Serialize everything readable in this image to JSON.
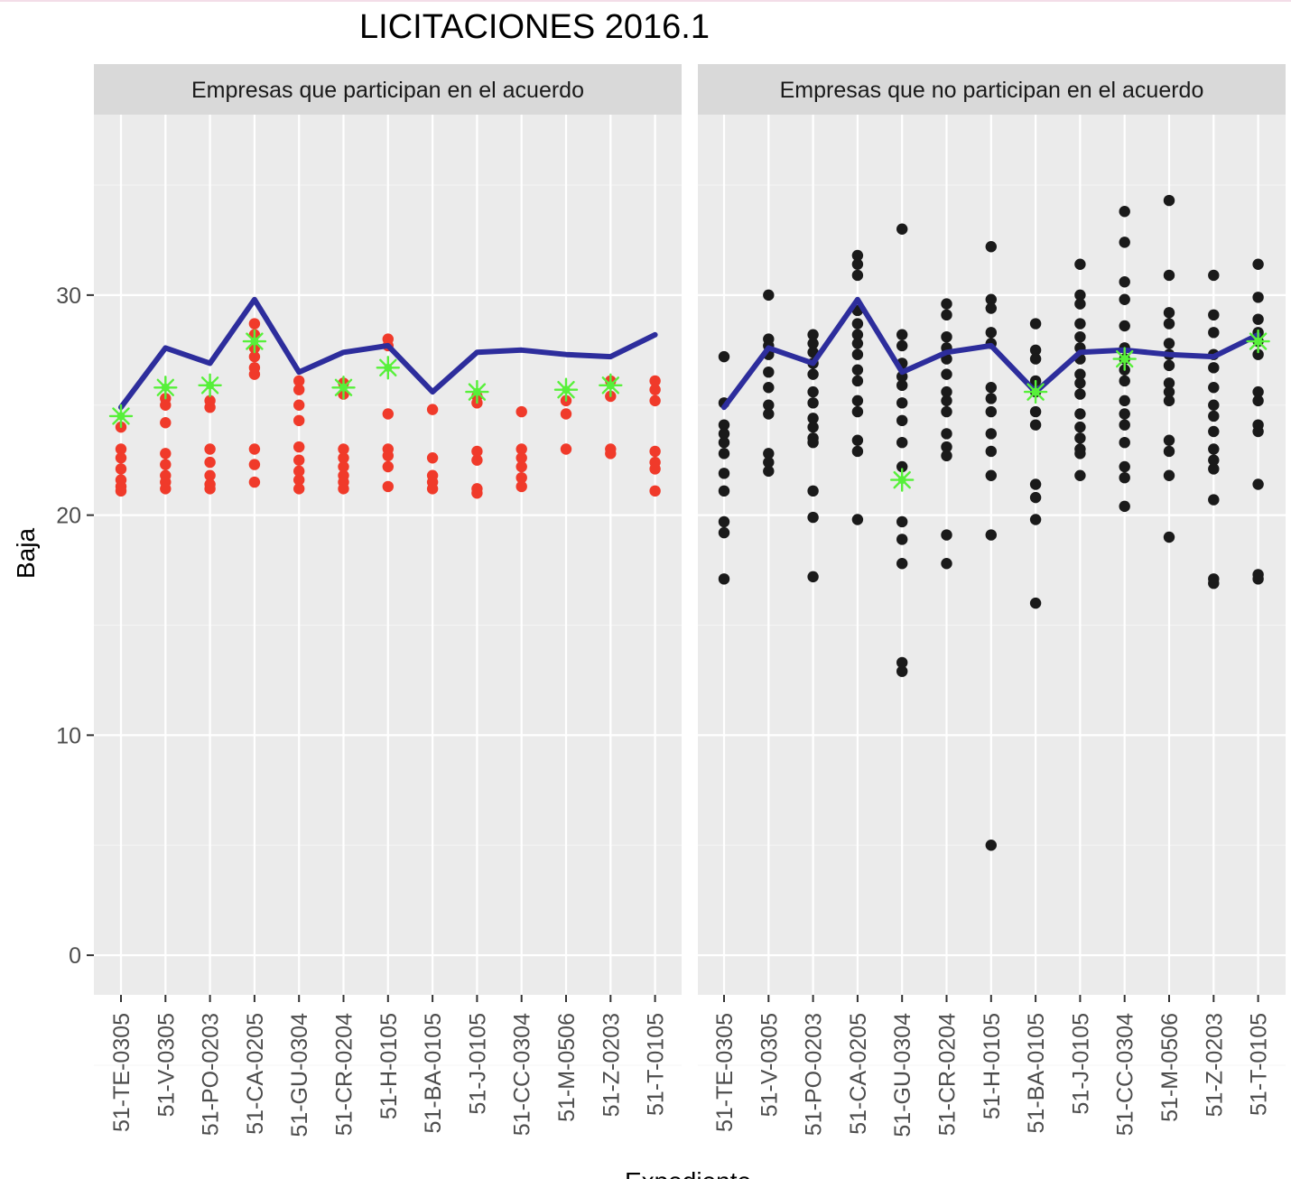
{
  "chart_data": {
    "type": "scatter",
    "title": "LICITACIONES  2016.1",
    "ylabel": "Baja",
    "xlabel": "Expediente",
    "ylim": [
      -1.8,
      38.2
    ],
    "yticks": [
      0,
      10,
      20,
      30
    ],
    "grid": true,
    "categories": [
      "51-TE-0305",
      "51-V-0305",
      "51-PO-0203",
      "51-CA-0205",
      "51-GU-0304",
      "51-CR-0204",
      "51-H-0105",
      "51-BA-0105",
      "51-J-0105",
      "51-CC-0304",
      "51-M-0506",
      "51-Z-0203",
      "51-T-0105"
    ],
    "colors": {
      "participating_points": "#f03a2a",
      "non_participating_points": "#1a1a1a",
      "line": "#2d2d9c",
      "winner_star": "#57f03a"
    },
    "panels": [
      {
        "strip": "Empresas que participan en el acuerdo",
        "line": [
          24.9,
          27.6,
          26.9,
          29.8,
          26.5,
          27.4,
          27.7,
          25.6,
          27.4,
          27.5,
          27.3,
          27.2,
          28.2
        ],
        "winners": [
          24.5,
          25.8,
          25.9,
          27.9,
          null,
          25.8,
          26.7,
          null,
          25.6,
          null,
          25.7,
          25.9,
          null
        ],
        "points": [
          [
            24.0,
            23.0,
            22.6,
            22.1,
            21.6,
            21.3,
            21.1
          ],
          [
            25.3,
            25.0,
            24.2,
            22.8,
            22.3,
            21.8,
            21.5,
            21.2
          ],
          [
            25.2,
            24.9,
            23.0,
            22.4,
            21.8,
            21.4,
            21.2
          ],
          [
            28.7,
            28.2,
            27.6,
            27.2,
            26.7,
            26.4,
            23.0,
            22.3,
            21.5
          ],
          [
            26.1,
            25.7,
            25.0,
            24.3,
            23.1,
            22.5,
            22.0,
            21.6,
            21.2
          ],
          [
            26.0,
            25.5,
            23.0,
            22.6,
            22.2,
            21.8,
            21.5,
            21.2
          ],
          [
            28.0,
            27.7,
            24.6,
            23.0,
            22.7,
            22.2,
            21.3
          ],
          [
            24.8,
            22.6,
            21.8,
            21.5,
            21.2
          ],
          [
            25.4,
            25.1,
            22.9,
            22.5,
            21.2,
            21.0
          ],
          [
            24.7,
            23.0,
            22.6,
            22.2,
            21.7,
            21.3
          ],
          [
            25.2,
            24.6,
            23.0
          ],
          [
            26.1,
            25.4,
            23.0,
            22.8
          ],
          [
            26.1,
            25.7,
            25.2,
            22.9,
            22.4,
            22.1,
            21.1
          ]
        ]
      },
      {
        "strip": "Empresas que no participan en el acuerdo",
        "line": [
          24.9,
          27.6,
          26.9,
          29.8,
          26.5,
          27.4,
          27.7,
          25.6,
          27.4,
          27.5,
          27.3,
          27.2,
          28.2
        ],
        "winners": [
          null,
          null,
          null,
          null,
          21.6,
          null,
          null,
          25.6,
          null,
          27.1,
          null,
          null,
          27.9
        ],
        "points": [
          [
            27.2,
            25.1,
            24.1,
            23.7,
            23.3,
            22.8,
            21.9,
            21.1,
            19.7,
            19.2,
            17.1
          ],
          [
            30.0,
            28.0,
            27.7,
            27.3,
            26.5,
            25.8,
            25.0,
            24.6,
            22.8,
            22.4,
            22.0
          ],
          [
            28.2,
            27.8,
            27.4,
            26.9,
            26.4,
            25.6,
            25.1,
            24.4,
            24.0,
            23.5,
            23.3,
            21.1,
            19.9,
            17.2
          ],
          [
            31.8,
            31.4,
            30.9,
            29.3,
            28.7,
            28.2,
            27.8,
            27.3,
            26.6,
            26.1,
            25.2,
            24.7,
            23.4,
            22.9,
            19.8
          ],
          [
            33.0,
            28.2,
            27.7,
            26.9,
            26.3,
            25.9,
            25.1,
            24.3,
            23.3,
            22.2,
            19.7,
            18.9,
            17.8,
            13.3,
            12.9
          ],
          [
            29.6,
            29.1,
            28.1,
            27.6,
            27.1,
            26.4,
            25.6,
            25.2,
            24.7,
            23.7,
            23.1,
            22.7,
            19.1,
            17.8
          ],
          [
            32.2,
            29.8,
            29.4,
            28.3,
            27.8,
            25.8,
            25.3,
            24.7,
            23.7,
            22.9,
            21.8,
            19.1,
            5.0
          ],
          [
            28.7,
            27.5,
            27.1,
            26.1,
            25.6,
            24.7,
            24.1,
            21.4,
            20.8,
            19.8,
            16.0
          ],
          [
            31.4,
            30.0,
            29.6,
            28.7,
            28.1,
            27.6,
            27.1,
            26.4,
            26.0,
            25.5,
            24.6,
            24.0,
            23.5,
            23.0,
            22.8,
            21.8
          ],
          [
            33.8,
            32.4,
            30.6,
            29.8,
            28.6,
            27.6,
            27.1,
            26.6,
            26.1,
            25.2,
            24.6,
            24.1,
            23.3,
            22.2,
            21.7,
            20.4
          ],
          [
            34.3,
            30.9,
            29.2,
            28.7,
            27.8,
            27.3,
            26.8,
            26.0,
            25.6,
            25.2,
            23.4,
            22.9,
            21.8,
            19.0
          ],
          [
            30.9,
            29.1,
            28.3,
            27.3,
            26.7,
            25.8,
            25.0,
            24.5,
            23.8,
            23.0,
            22.5,
            22.1,
            20.7,
            17.1,
            16.9
          ],
          [
            31.4,
            29.9,
            28.9,
            28.3,
            27.9,
            27.3,
            25.6,
            25.2,
            24.1,
            23.8,
            21.4,
            17.3,
            17.1
          ]
        ]
      }
    ]
  }
}
